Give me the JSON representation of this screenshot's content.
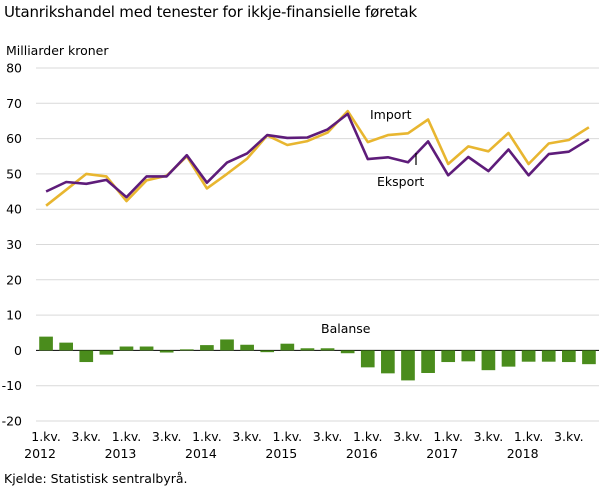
{
  "chart_data": {
    "type": "line",
    "title": "Utanrikshandel med tenester for ikkje-finansielle føretak",
    "ylabel": "Milliarder  kroner",
    "source": "Kjelde: Statistisk sentralbyrå.",
    "ylim": [
      -20,
      80
    ],
    "yticks": [
      -20,
      -10,
      0,
      10,
      20,
      30,
      40,
      50,
      60,
      70,
      80
    ],
    "grid": true,
    "x": [
      "2012Q1",
      "2012Q2",
      "2012Q3",
      "2012Q4",
      "2013Q1",
      "2013Q2",
      "2013Q3",
      "2013Q4",
      "2014Q1",
      "2014Q2",
      "2014Q3",
      "2014Q4",
      "2015Q1",
      "2015Q2",
      "2015Q3",
      "2015Q4",
      "2016Q1",
      "2016Q2",
      "2016Q3",
      "2016Q4",
      "2017Q1",
      "2017Q2",
      "2017Q3",
      "2017Q4",
      "2018Q1",
      "2018Q2",
      "2018Q3",
      "2018Q4"
    ],
    "xtick_labels": [
      {
        "index": 0,
        "line1": "1.kv.",
        "line2": "2012"
      },
      {
        "index": 2,
        "line1": "3.kv.",
        "line2": ""
      },
      {
        "index": 4,
        "line1": "1.kv.",
        "line2": "2013"
      },
      {
        "index": 6,
        "line1": "3.kv.",
        "line2": ""
      },
      {
        "index": 8,
        "line1": "1.kv.",
        "line2": "2014"
      },
      {
        "index": 10,
        "line1": "3.kv.",
        "line2": ""
      },
      {
        "index": 12,
        "line1": "1.kv.",
        "line2": "2015"
      },
      {
        "index": 14,
        "line1": "3.kv.",
        "line2": ""
      },
      {
        "index": 16,
        "line1": "1.kv.",
        "line2": "2016"
      },
      {
        "index": 18,
        "line1": "3.kv.",
        "line2": ""
      },
      {
        "index": 20,
        "line1": "1.kv.",
        "line2": "2017"
      },
      {
        "index": 22,
        "line1": "3.kv.",
        "line2": ""
      },
      {
        "index": 24,
        "line1": "1.kv.",
        "line2": "2018"
      },
      {
        "index": 26,
        "line1": "3.kv.",
        "line2": ""
      }
    ],
    "series": [
      {
        "name": "Import",
        "type": "line",
        "color": "#e8b630",
        "values": [
          41.0,
          45.5,
          50.0,
          49.3,
          42.3,
          48.2,
          49.5,
          55.0,
          45.9,
          50.0,
          54.3,
          60.9,
          58.2,
          59.3,
          61.7,
          67.8,
          59.0,
          61.0,
          61.5,
          65.4,
          52.8,
          57.8,
          56.4,
          61.6,
          52.8,
          58.6,
          59.6,
          63.2
        ]
      },
      {
        "name": "Eksport",
        "type": "line",
        "color": "#5e1c7a",
        "values": [
          45.0,
          47.7,
          47.2,
          48.3,
          43.4,
          49.3,
          49.3,
          55.3,
          47.5,
          53.2,
          55.8,
          61.0,
          60.2,
          60.3,
          62.6,
          67.0,
          54.2,
          54.7,
          53.3,
          59.2,
          49.6,
          54.8,
          50.8,
          56.9,
          49.6,
          55.6,
          56.3,
          59.8
        ]
      },
      {
        "name": "Balanse",
        "type": "bar",
        "color": "#4a8c1c",
        "values": [
          3.9,
          2.2,
          -3.3,
          -1.2,
          1.1,
          1.1,
          -0.6,
          0.3,
          1.5,
          3.1,
          1.6,
          -0.5,
          1.9,
          0.6,
          0.6,
          -0.8,
          -4.8,
          -6.5,
          -8.5,
          -6.4,
          -3.3,
          -3.1,
          -5.6,
          -4.6,
          -3.2,
          -3.2,
          -3.3,
          -3.9
        ]
      }
    ],
    "annotations": {
      "import": "Import",
      "export": "Eksport",
      "balance": "Balanse"
    }
  }
}
